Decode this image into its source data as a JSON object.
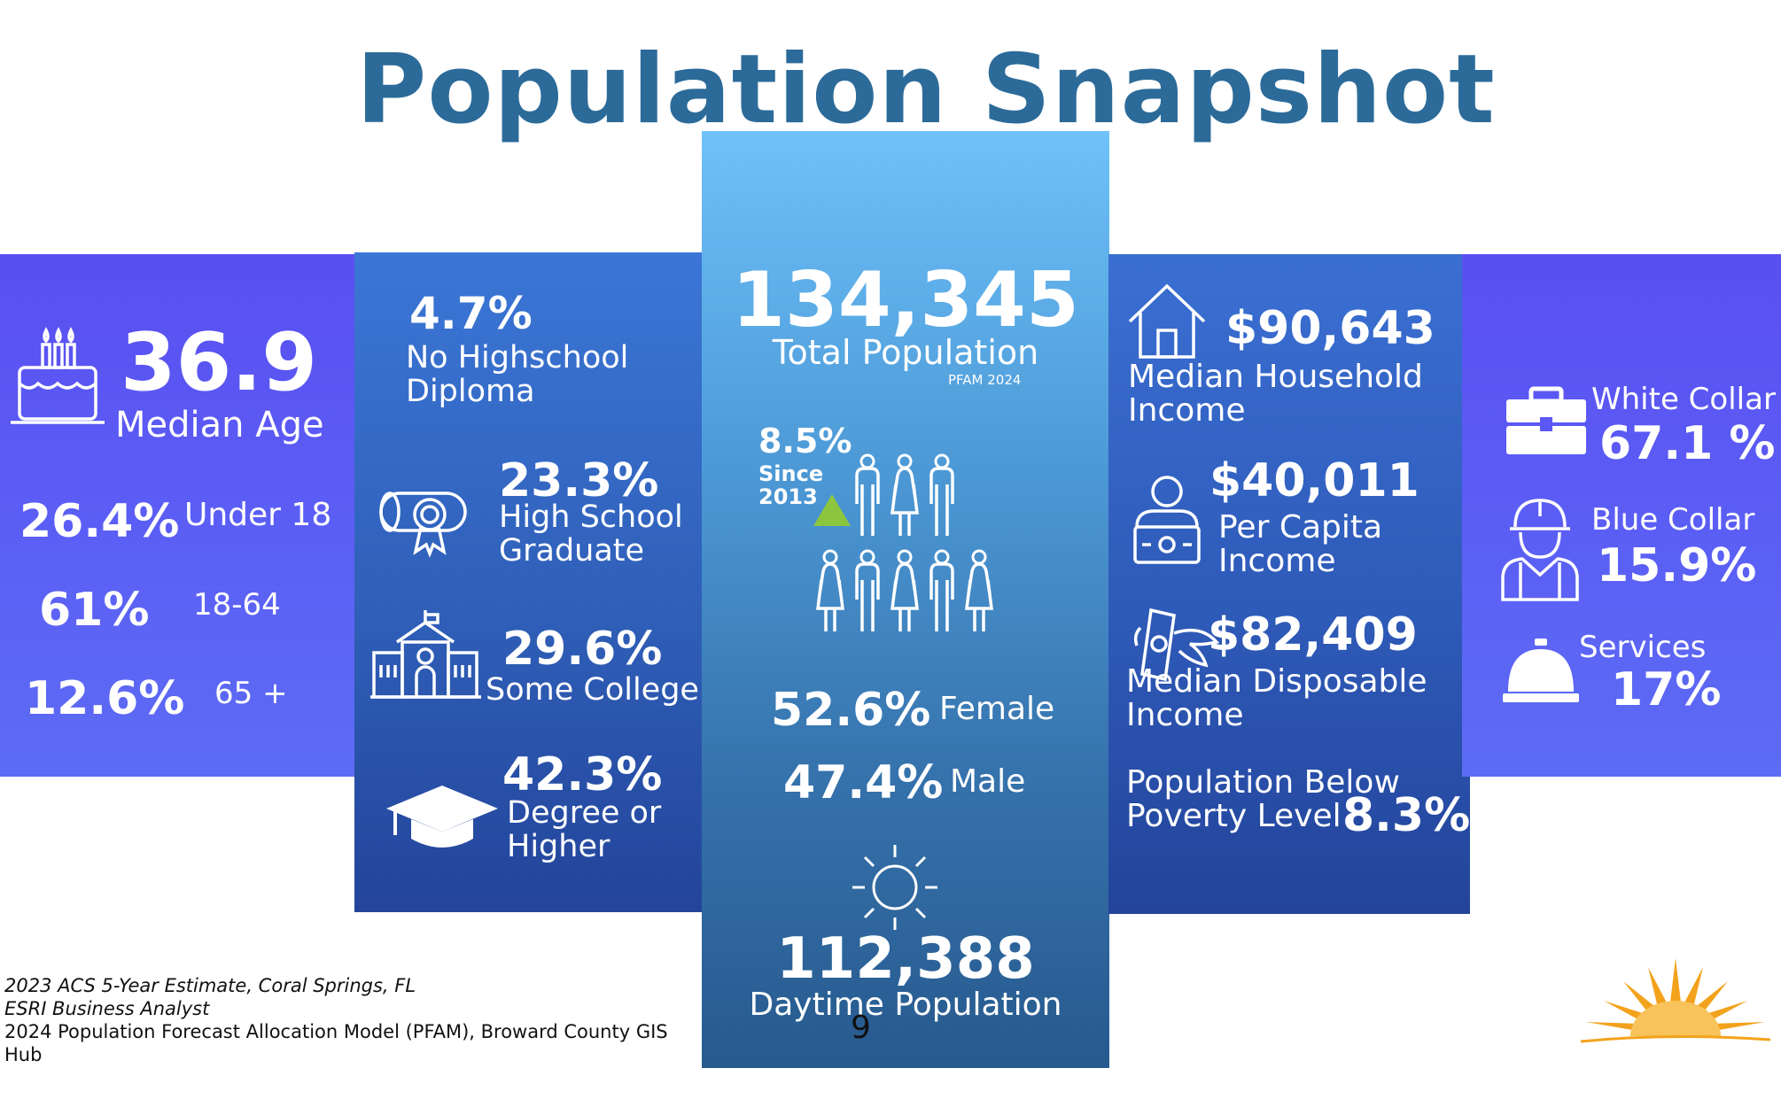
{
  "title": "Population Snapshot",
  "age": {
    "median_value": "36.9",
    "median_label": "Median Age",
    "rows": [
      {
        "value": "26.4%",
        "label": "Under 18"
      },
      {
        "value": "61%",
        "label": "18-64"
      },
      {
        "value": "12.6%",
        "label": "65 +"
      }
    ]
  },
  "education": {
    "items": [
      {
        "value": "4.7%",
        "line1": "No Highschool",
        "line2": "Diploma"
      },
      {
        "value": "23.3%",
        "line1": "High School",
        "line2": "Graduate"
      },
      {
        "value": "29.6%",
        "line1": "Some College",
        "line2": ""
      },
      {
        "value": "42.3%",
        "line1": "Degree or",
        "line2": "Higher"
      }
    ]
  },
  "population": {
    "total_value": "134,345",
    "total_label": "Total Population",
    "total_source": "PFAM 2024",
    "growth_value": "8.5%",
    "growth_since": "Since",
    "growth_year": "2013",
    "female_value": "52.6%",
    "female_label": "Female",
    "male_value": "47.4%",
    "male_label": "Male",
    "daytime_value": "112,388",
    "daytime_label": "Daytime Population",
    "page_number": "9"
  },
  "income": {
    "household_value": "$90,643",
    "household_line1": "Median Household",
    "household_line2": "Income",
    "percapita_value": "$40,011",
    "percapita_line1": "Per Capita",
    "percapita_line2": "Income",
    "disposable_value": "$82,409",
    "disposable_line1": "Median Disposable",
    "disposable_line2": "Income",
    "poverty_line1": "Population Below",
    "poverty_line2": "Poverty Level",
    "poverty_value": "8.3%"
  },
  "workforce": {
    "white_label": "White Collar",
    "white_value": "67.1 %",
    "blue_label": "Blue Collar",
    "blue_value": "15.9%",
    "services_label": "Services",
    "services_value": "17%"
  },
  "sources": [
    "2023 ACS 5-Year Estimate, Coral Springs, FL",
    "ESRI Business Analyst",
    "2024 Population Forecast Allocation Model (PFAM), Broward County GIS",
    "Hub"
  ],
  "colors": {
    "title": "#2c6b99",
    "purple_panel": "#5b55f2",
    "blue_panel": "#2f5fb8",
    "center_top": "#6ec1f9",
    "center_bottom": "#275a8e",
    "growth_arrow": "#8cc63f",
    "sun_logo": "#f3a21c"
  },
  "icons": [
    "birthday-cake-icon",
    "diploma-scroll-icon",
    "school-building-icon",
    "graduation-cap-icon",
    "people-group-icon",
    "up-triangle-icon",
    "sun-icon",
    "house-icon",
    "person-cash-icon",
    "flying-money-icon",
    "briefcase-icon",
    "worker-hardhat-icon",
    "service-bell-icon",
    "sunrise-logo-icon"
  ]
}
